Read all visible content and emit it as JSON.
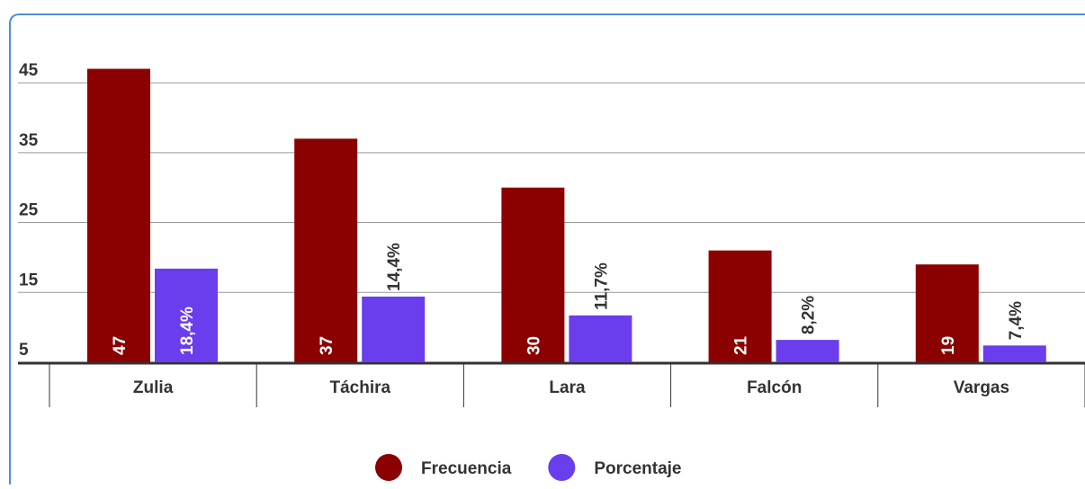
{
  "chart_data": {
    "type": "bar",
    "categories": [
      "Zulia",
      "Táchira",
      "Lara",
      "Falcón",
      "Vargas"
    ],
    "series": [
      {
        "name": "Frecuencia",
        "color": "#8b0000",
        "values": [
          47,
          37,
          30,
          21,
          19
        ]
      },
      {
        "name": "Porcentaje",
        "color": "#6a3ded",
        "values": [
          18.4,
          14.4,
          11.7,
          8.2,
          7.4
        ],
        "value_labels": [
          "18,4%",
          "14,4%",
          "11,7%",
          "8,2%",
          "7,4%"
        ]
      }
    ],
    "ylim": [
      5,
      49
    ],
    "yticks": [
      5,
      15,
      25,
      35,
      45
    ],
    "grid": true,
    "legend": "bottom"
  }
}
